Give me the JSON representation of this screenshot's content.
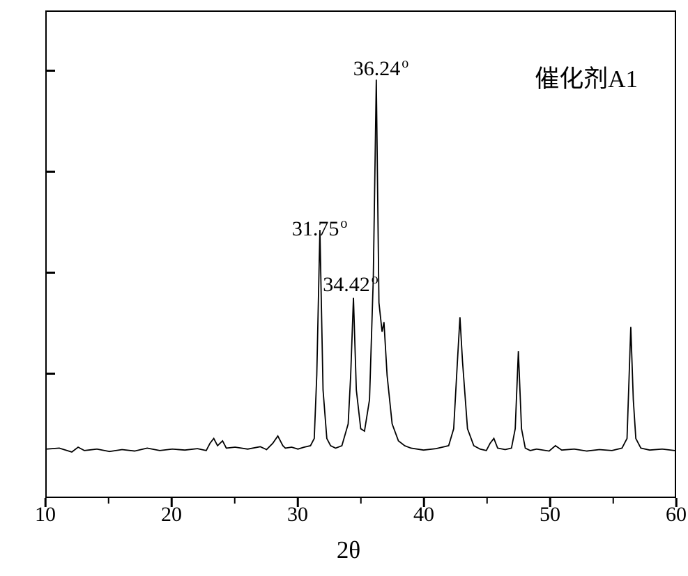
{
  "chart": {
    "type": "line",
    "background_color": "#ffffff",
    "line_color": "#000000",
    "border_color": "#000000",
    "line_width": 1.8,
    "xlabel": "2θ",
    "xlabel_fontsize": 35,
    "xlim": [
      10,
      60
    ],
    "ylim": [
      0,
      100
    ],
    "xtick_values": [
      10,
      20,
      30,
      40,
      50,
      60
    ],
    "xtick_labels": [
      "10",
      "20",
      "30",
      "40",
      "50",
      "60"
    ],
    "ytick_count": 5,
    "label_fontsize": 30,
    "legend_text": "催化剂A1",
    "legend_fontsize": 35,
    "peak_labels": [
      {
        "text": "31.75",
        "degree": true,
        "x": 31.75,
        "y_offset": 295
      },
      {
        "text": "34.42",
        "degree": true,
        "x": 34.2,
        "y_offset": 375
      },
      {
        "text": "36.24",
        "degree": true,
        "x": 36.6,
        "y_offset": 65
      }
    ],
    "baseline_y": 9.5,
    "data": [
      {
        "x": 10,
        "y": 9.8
      },
      {
        "x": 11,
        "y": 10.0
      },
      {
        "x": 12,
        "y": 9.2
      },
      {
        "x": 12.5,
        "y": 10.2
      },
      {
        "x": 13,
        "y": 9.5
      },
      {
        "x": 14,
        "y": 9.8
      },
      {
        "x": 15,
        "y": 9.3
      },
      {
        "x": 16,
        "y": 9.7
      },
      {
        "x": 17,
        "y": 9.4
      },
      {
        "x": 18,
        "y": 10.0
      },
      {
        "x": 19,
        "y": 9.5
      },
      {
        "x": 20,
        "y": 9.8
      },
      {
        "x": 21,
        "y": 9.6
      },
      {
        "x": 22,
        "y": 9.9
      },
      {
        "x": 22.7,
        "y": 9.5
      },
      {
        "x": 23,
        "y": 11.0
      },
      {
        "x": 23.3,
        "y": 12.0
      },
      {
        "x": 23.6,
        "y": 10.5
      },
      {
        "x": 24,
        "y": 11.5
      },
      {
        "x": 24.3,
        "y": 10.0
      },
      {
        "x": 25,
        "y": 10.2
      },
      {
        "x": 26,
        "y": 9.8
      },
      {
        "x": 27,
        "y": 10.3
      },
      {
        "x": 27.5,
        "y": 9.7
      },
      {
        "x": 28,
        "y": 11.0
      },
      {
        "x": 28.4,
        "y": 12.5
      },
      {
        "x": 28.8,
        "y": 10.5
      },
      {
        "x": 29,
        "y": 10.0
      },
      {
        "x": 29.5,
        "y": 10.2
      },
      {
        "x": 30,
        "y": 9.8
      },
      {
        "x": 30.5,
        "y": 10.2
      },
      {
        "x": 31,
        "y": 10.5
      },
      {
        "x": 31.3,
        "y": 12.0
      },
      {
        "x": 31.5,
        "y": 25.0
      },
      {
        "x": 31.75,
        "y": 55.0
      },
      {
        "x": 32,
        "y": 22.0
      },
      {
        "x": 32.3,
        "y": 12.0
      },
      {
        "x": 32.6,
        "y": 10.5
      },
      {
        "x": 33,
        "y": 10.0
      },
      {
        "x": 33.5,
        "y": 10.5
      },
      {
        "x": 34,
        "y": 15.0
      },
      {
        "x": 34.2,
        "y": 25.0
      },
      {
        "x": 34.42,
        "y": 41.0
      },
      {
        "x": 34.65,
        "y": 22.0
      },
      {
        "x": 35,
        "y": 14.0
      },
      {
        "x": 35.3,
        "y": 13.5
      },
      {
        "x": 35.7,
        "y": 20.0
      },
      {
        "x": 36,
        "y": 45.0
      },
      {
        "x": 36.24,
        "y": 86.0
      },
      {
        "x": 36.45,
        "y": 40.0
      },
      {
        "x": 36.7,
        "y": 34.0
      },
      {
        "x": 36.85,
        "y": 36.0
      },
      {
        "x": 37.1,
        "y": 25.0
      },
      {
        "x": 37.5,
        "y": 15.0
      },
      {
        "x": 38,
        "y": 11.5
      },
      {
        "x": 38.5,
        "y": 10.5
      },
      {
        "x": 39,
        "y": 10.0
      },
      {
        "x": 40,
        "y": 9.6
      },
      {
        "x": 41,
        "y": 9.9
      },
      {
        "x": 42,
        "y": 10.5
      },
      {
        "x": 42.4,
        "y": 14.0
      },
      {
        "x": 42.7,
        "y": 28.0
      },
      {
        "x": 42.9,
        "y": 37.0
      },
      {
        "x": 43.1,
        "y": 28.0
      },
      {
        "x": 43.5,
        "y": 14.0
      },
      {
        "x": 44,
        "y": 10.5
      },
      {
        "x": 44.5,
        "y": 9.8
      },
      {
        "x": 45,
        "y": 9.5
      },
      {
        "x": 45.3,
        "y": 11.0
      },
      {
        "x": 45.6,
        "y": 12.0
      },
      {
        "x": 45.9,
        "y": 10.0
      },
      {
        "x": 46.5,
        "y": 9.7
      },
      {
        "x": 47,
        "y": 10.0
      },
      {
        "x": 47.3,
        "y": 14.0
      },
      {
        "x": 47.55,
        "y": 30.0
      },
      {
        "x": 47.8,
        "y": 14.0
      },
      {
        "x": 48.1,
        "y": 10.0
      },
      {
        "x": 48.5,
        "y": 9.5
      },
      {
        "x": 49,
        "y": 9.8
      },
      {
        "x": 50,
        "y": 9.4
      },
      {
        "x": 50.5,
        "y": 10.5
      },
      {
        "x": 51,
        "y": 9.6
      },
      {
        "x": 52,
        "y": 9.8
      },
      {
        "x": 53,
        "y": 9.4
      },
      {
        "x": 54,
        "y": 9.7
      },
      {
        "x": 55,
        "y": 9.5
      },
      {
        "x": 55.8,
        "y": 10.0
      },
      {
        "x": 56.2,
        "y": 12.0
      },
      {
        "x": 56.5,
        "y": 35.0
      },
      {
        "x": 56.7,
        "y": 20.0
      },
      {
        "x": 56.9,
        "y": 12.0
      },
      {
        "x": 57.3,
        "y": 10.0
      },
      {
        "x": 58,
        "y": 9.6
      },
      {
        "x": 59,
        "y": 9.8
      },
      {
        "x": 60,
        "y": 9.5
      }
    ]
  }
}
